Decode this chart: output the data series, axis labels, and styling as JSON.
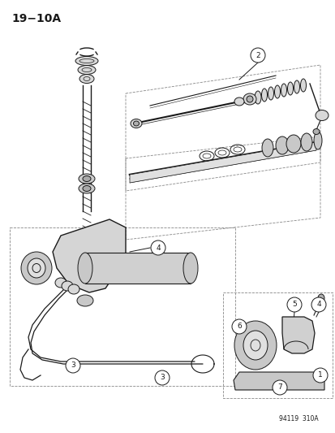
{
  "title": "19−10A",
  "watermark": "94119  310A",
  "bg_color": "#ffffff",
  "fig_width": 4.14,
  "fig_height": 5.33,
  "dpi": 100,
  "line_color": "#1a1a1a",
  "dash_color": "#888888",
  "gray_light": "#d8d8d8",
  "gray_mid": "#b0b0b0",
  "gray_dark": "#888888"
}
